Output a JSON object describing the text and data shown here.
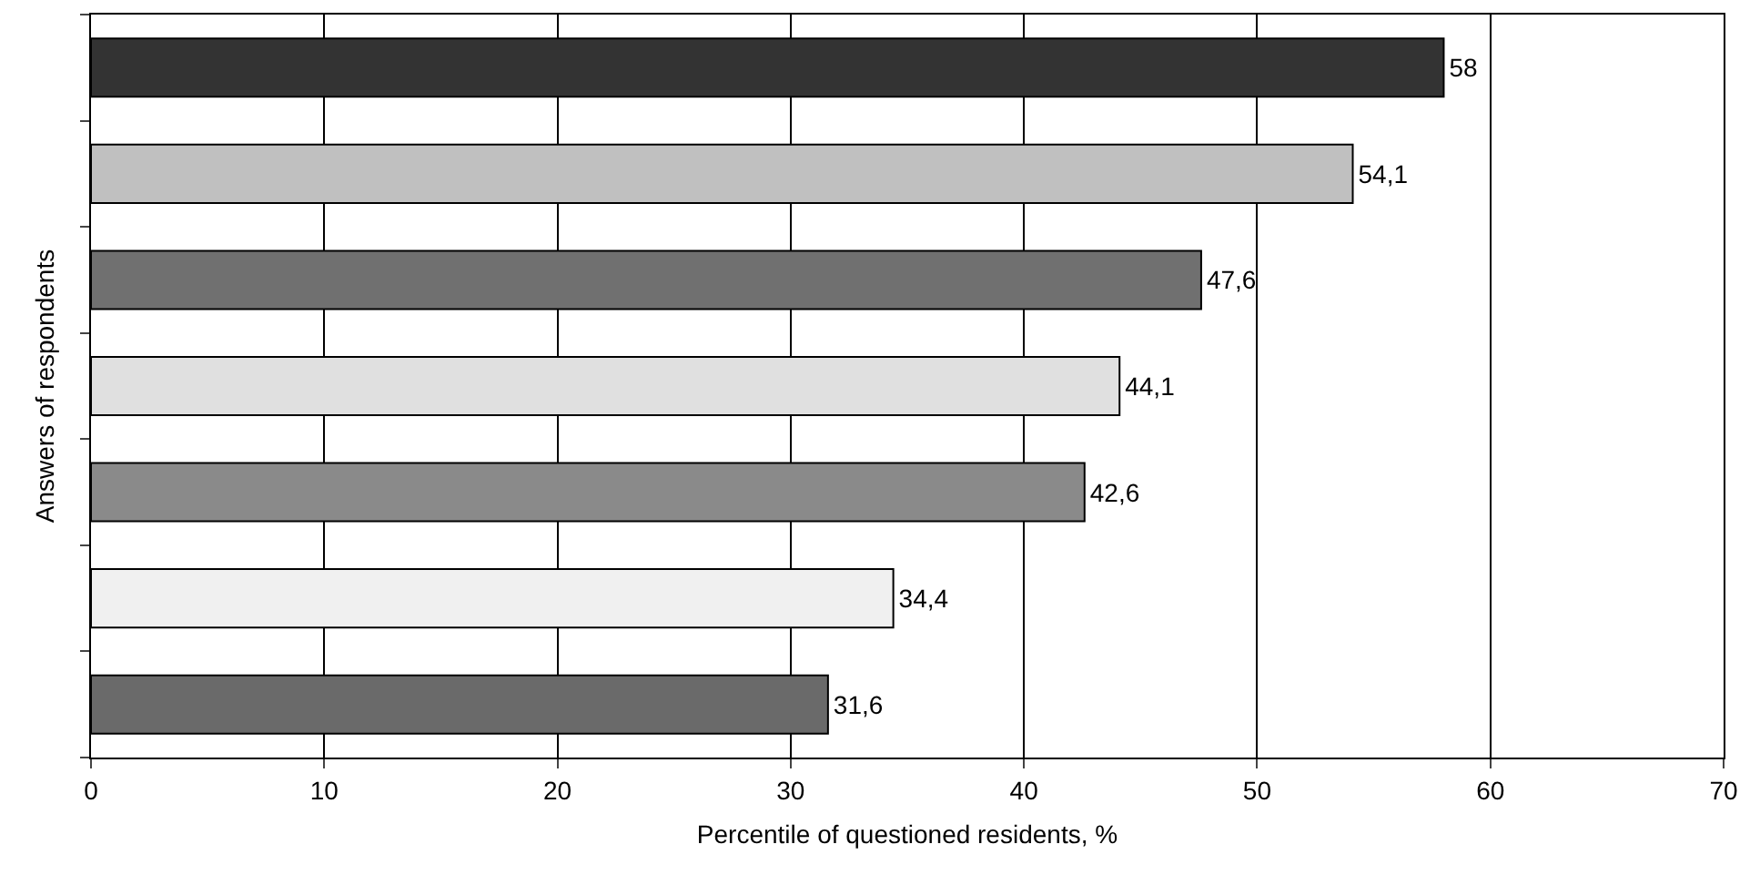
{
  "chart_data": {
    "type": "bar",
    "orientation": "horizontal",
    "xlabel": "Percentile of questioned residents, %",
    "ylabel": "Answers of respondents",
    "categories": [
      null,
      null,
      null,
      null,
      null,
      null,
      null
    ],
    "values": [
      58,
      54.1,
      47.6,
      44.1,
      42.6,
      34.4,
      31.6
    ],
    "value_labels": [
      "58",
      "54,1",
      "47,6",
      "44,1",
      "42,6",
      "34,4",
      "31,6"
    ],
    "colors": [
      "#333333",
      "#c0c0c0",
      "#707070",
      "#e0e0e0",
      "#8a8a8a",
      "#f0f0f0",
      "#6a6a6a"
    ],
    "xlim": [
      0,
      70
    ],
    "xticks": [
      0,
      10,
      20,
      30,
      40,
      50,
      60,
      70
    ],
    "grid": "x",
    "tick_labels": "x"
  }
}
